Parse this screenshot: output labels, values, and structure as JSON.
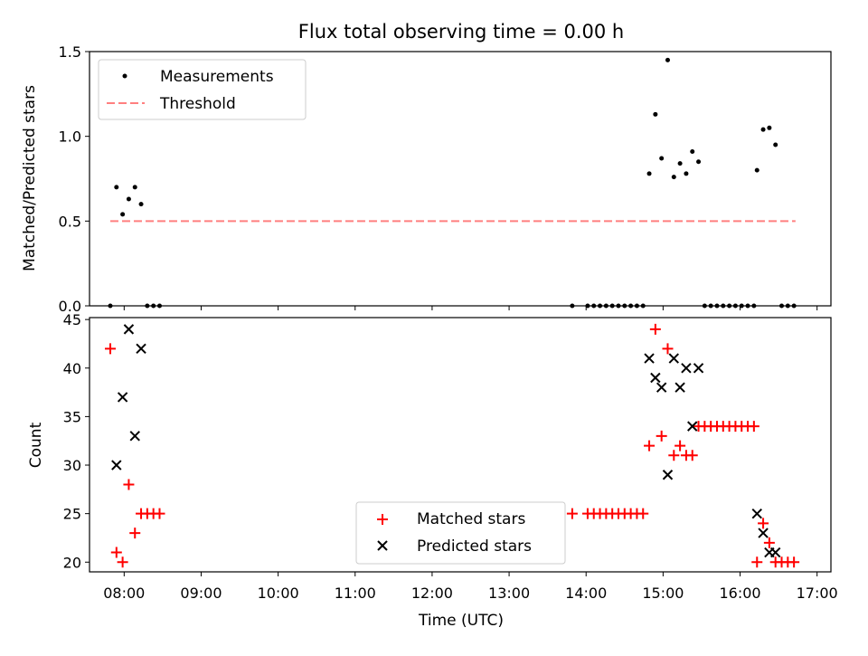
{
  "title": "Flux total observing time = 0.00 h",
  "chart_data": [
    {
      "type": "scatter",
      "ylabel": "Matched/Predicted stars",
      "xlabel": "",
      "xlim": [
        7.55,
        17.18
      ],
      "ylim": [
        0.0,
        1.5
      ],
      "yticks": [
        0.0,
        0.5,
        1.0,
        1.5
      ],
      "ytick_labels": [
        "0.0",
        "0.5",
        "1.0",
        "1.5"
      ],
      "legend": {
        "location": "top-left",
        "entries": [
          "Measurements",
          "Threshold"
        ]
      },
      "series": [
        {
          "name": "Measurements",
          "color": "#000000",
          "marker": "dot",
          "x": [
            7.82,
            7.9,
            7.98,
            8.06,
            8.14,
            8.22,
            8.3,
            8.38,
            8.46,
            13.82,
            14.02,
            14.1,
            14.18,
            14.26,
            14.34,
            14.42,
            14.5,
            14.58,
            14.66,
            14.74,
            14.82,
            14.9,
            14.98,
            15.06,
            15.14,
            15.22,
            15.3,
            15.38,
            15.46,
            15.54,
            15.62,
            15.7,
            15.78,
            15.86,
            15.94,
            16.02,
            16.1,
            16.18,
            16.22,
            16.3,
            16.38,
            16.46,
            16.54,
            16.62,
            16.7
          ],
          "y": [
            0.0,
            0.7,
            0.54,
            0.63,
            0.7,
            0.6,
            0.0,
            0.0,
            0.0,
            0.0,
            0.0,
            0.0,
            0.0,
            0.0,
            0.0,
            0.0,
            0.0,
            0.0,
            0.0,
            0.0,
            0.78,
            1.13,
            0.87,
            1.45,
            0.76,
            0.84,
            0.78,
            0.91,
            0.85,
            0.0,
            0.0,
            0.0,
            0.0,
            0.0,
            0.0,
            0.0,
            0.0,
            0.0,
            0.8,
            1.04,
            1.05,
            0.95,
            0.0,
            0.0,
            0.0
          ]
        },
        {
          "name": "Threshold",
          "type": "line",
          "style": "dashed",
          "color": "#ff7f7f",
          "x": [
            7.82,
            16.72
          ],
          "y": [
            0.5,
            0.5
          ]
        }
      ]
    },
    {
      "type": "scatter",
      "xlabel": "Time (UTC)",
      "ylabel": "Count",
      "xlim": [
        7.55,
        17.18
      ],
      "ylim": [
        19.0,
        45.2
      ],
      "xticks": [
        8,
        9,
        10,
        11,
        12,
        13,
        14,
        15,
        16,
        17
      ],
      "xtick_labels": [
        "08:00",
        "09:00",
        "10:00",
        "11:00",
        "12:00",
        "13:00",
        "14:00",
        "15:00",
        "16:00",
        "17:00"
      ],
      "yticks": [
        20,
        25,
        30,
        35,
        40,
        45
      ],
      "ytick_labels": [
        "20",
        "25",
        "30",
        "35",
        "40",
        "45"
      ],
      "legend": {
        "location": "bottom-center",
        "entries": [
          "Matched stars",
          "Predicted stars"
        ]
      },
      "series": [
        {
          "name": "Matched stars",
          "color": "#ff0000",
          "marker": "plus",
          "x": [
            7.82,
            7.9,
            7.98,
            8.06,
            8.14,
            8.22,
            8.3,
            8.38,
            8.46,
            13.82,
            14.02,
            14.1,
            14.18,
            14.26,
            14.34,
            14.42,
            14.5,
            14.58,
            14.66,
            14.74,
            14.82,
            14.9,
            14.98,
            15.06,
            15.14,
            15.22,
            15.3,
            15.38,
            15.46,
            15.54,
            15.62,
            15.7,
            15.78,
            15.86,
            15.94,
            16.02,
            16.1,
            16.18,
            16.22,
            16.3,
            16.38,
            16.46,
            16.54,
            16.62,
            16.7
          ],
          "y": [
            42,
            21,
            20,
            28,
            23,
            25,
            25,
            25,
            25,
            25,
            25,
            25,
            25,
            25,
            25,
            25,
            25,
            25,
            25,
            25,
            32,
            44,
            33,
            42,
            31,
            32,
            31,
            31,
            34,
            34,
            34,
            34,
            34,
            34,
            34,
            34,
            34,
            34,
            20,
            24,
            22,
            20,
            20,
            20,
            20
          ]
        },
        {
          "name": "Predicted stars",
          "color": "#000000",
          "marker": "x",
          "x": [
            7.9,
            7.98,
            8.06,
            8.14,
            8.22,
            14.82,
            14.9,
            14.98,
            15.06,
            15.14,
            15.22,
            15.3,
            15.38,
            15.46,
            16.22,
            16.3,
            16.38,
            16.46
          ],
          "y": [
            30,
            37,
            44,
            33,
            42,
            41,
            39,
            38,
            29,
            41,
            38,
            40,
            34,
            40,
            25,
            23,
            21,
            21
          ]
        }
      ]
    }
  ]
}
